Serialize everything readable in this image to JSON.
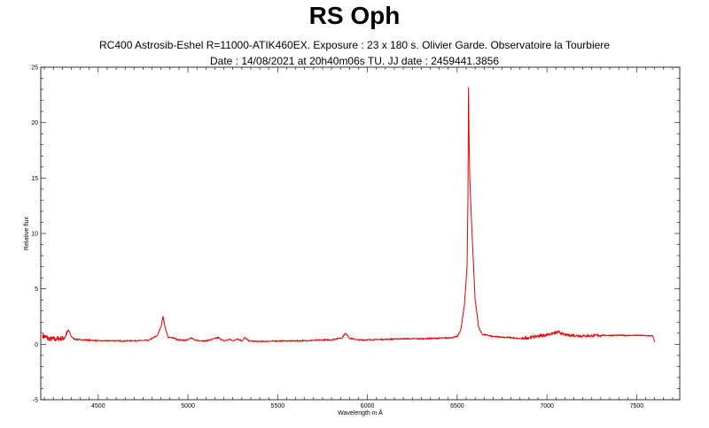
{
  "title": "RS Oph",
  "subtitle_line1": "RC400 Astrosib-Eshel R=11000-ATIK460EX. Exposure : 23 x 180 s. Olivier Garde. Observatoire la Tourbiere",
  "subtitle_line2": "Date : 14/08/2021 at 20h40m06s TU. JJ date : 2459441.3856",
  "chart_data": {
    "type": "line",
    "xlabel": "Wavelength in Å",
    "ylabel": "Relative flux",
    "xlim": [
      4180,
      7740
    ],
    "ylim": [
      -5,
      25
    ],
    "xticks": [
      4500,
      5000,
      5500,
      6000,
      6500,
      7000,
      7500
    ],
    "yticks": [
      -5,
      0,
      5,
      10,
      15,
      20,
      25
    ],
    "grid": false,
    "line_color": "#e60000",
    "series": [
      {
        "x": [
          4190,
          4230,
          4270,
          4310,
          4335,
          4350,
          4370,
          4420,
          4470,
          4520,
          4580,
          4640,
          4700,
          4780,
          4830,
          4850,
          4861,
          4872,
          4890,
          4922,
          4940,
          4990,
          5018,
          5040,
          5100,
          5169,
          5200,
          5234,
          5250,
          5276,
          5300,
          5317,
          5340,
          5400,
          5500,
          5600,
          5700,
          5750,
          5800,
          5860,
          5876,
          5890,
          5900,
          5950,
          6000,
          6100,
          6200,
          6300,
          6400,
          6470,
          6500,
          6520,
          6540,
          6555,
          6560,
          6563,
          6566,
          6570,
          6580,
          6600,
          6620,
          6640,
          6670,
          6700,
          6800,
          6850,
          6900,
          6950,
          7000,
          7065,
          7100,
          7200,
          7300,
          7400,
          7500,
          7560,
          7590,
          7600
        ],
        "y": [
          0.8,
          0.45,
          0.5,
          0.55,
          1.3,
          0.7,
          0.45,
          0.4,
          0.35,
          0.3,
          0.32,
          0.3,
          0.32,
          0.35,
          0.8,
          1.6,
          2.5,
          1.6,
          0.6,
          0.6,
          0.4,
          0.35,
          0.6,
          0.35,
          0.3,
          0.6,
          0.3,
          0.45,
          0.3,
          0.5,
          0.3,
          0.6,
          0.3,
          0.25,
          0.3,
          0.3,
          0.35,
          0.4,
          0.4,
          0.6,
          1.0,
          0.8,
          0.55,
          0.4,
          0.4,
          0.45,
          0.5,
          0.5,
          0.55,
          0.6,
          0.7,
          1.3,
          3.5,
          7.0,
          13.0,
          23.2,
          19.0,
          15.0,
          11.0,
          4.0,
          1.5,
          0.9,
          0.8,
          0.7,
          0.6,
          0.5,
          0.6,
          0.75,
          0.85,
          1.1,
          0.85,
          0.75,
          0.8,
          0.8,
          0.8,
          0.78,
          0.75,
          0.2
        ]
      }
    ]
  }
}
